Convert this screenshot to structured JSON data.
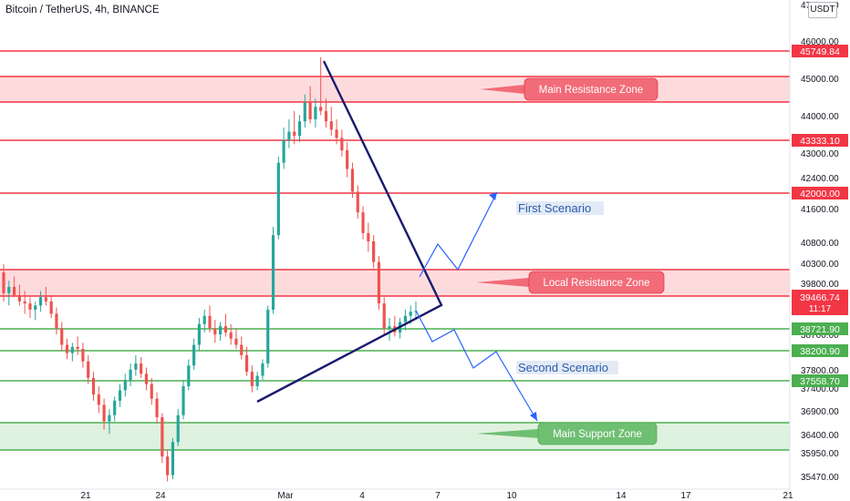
{
  "header": {
    "title": "Bitcoin / TetherUS, 4h, BINANCE",
    "currency": "USDT"
  },
  "chart_data": {
    "type": "candlestick",
    "x_tick_labels": [
      "21",
      "24",
      "Mar",
      "4",
      "7",
      "10",
      "14",
      "17",
      "21"
    ],
    "y_tick_labels": [
      47000,
      46000,
      45000,
      44000,
      43000,
      42400,
      41600,
      40800,
      40300,
      39800,
      38700,
      38200,
      37800,
      37400,
      36900,
      36400,
      35950,
      35470
    ],
    "ylim": [
      35300,
      47100
    ],
    "price_levels": [
      {
        "label": "45749.84",
        "price": 45749.84,
        "color": "#f23645"
      },
      {
        "label": "43333.10",
        "price": 43333.1,
        "color": "#f23645"
      },
      {
        "label": "42000.00",
        "price": 42000.0,
        "color": "#f23645"
      },
      {
        "label": "38721.90",
        "price": 38721.9,
        "color": "#4caf50"
      },
      {
        "label": "38200.90",
        "price": 38200.9,
        "color": "#4caf50"
      },
      {
        "label": "37558.70",
        "price": 37558.7,
        "color": "#4caf50"
      }
    ],
    "current_price": {
      "label": "39466.74",
      "countdown": "11:17",
      "price": 39466.74,
      "color": "#f23645"
    },
    "zones": [
      {
        "name": "Main Resistance Zone",
        "low": 44450,
        "high": 45050,
        "kind": "resistance"
      },
      {
        "name": "Local Resistance Zone",
        "low": 39466.74,
        "high": 40100,
        "kind": "resistance"
      },
      {
        "name": "Main Support Zone",
        "low": 35950,
        "high": 36600,
        "kind": "support"
      }
    ],
    "scenarios": [
      {
        "name": "First Scenario"
      },
      {
        "name": "Second Scenario"
      }
    ],
    "candles_ohlc": [
      [
        40400,
        40600,
        39700,
        39900
      ],
      [
        39900,
        40200,
        39600,
        40050
      ],
      [
        40050,
        40300,
        39800,
        39850
      ],
      [
        39850,
        40100,
        39600,
        39700
      ],
      [
        39700,
        39950,
        39400,
        39650
      ],
      [
        39650,
        39800,
        39300,
        39500
      ],
      [
        39500,
        39700,
        39250,
        39600
      ],
      [
        39600,
        39950,
        39450,
        39800
      ],
      [
        39800,
        40050,
        39600,
        39700
      ],
      [
        39700,
        39850,
        39300,
        39400
      ],
      [
        39400,
        39550,
        38900,
        39050
      ],
      [
        39050,
        39200,
        38500,
        38650
      ],
      [
        38650,
        38800,
        38300,
        38450
      ],
      [
        38450,
        38700,
        38250,
        38600
      ],
      [
        38600,
        38850,
        38400,
        38550
      ],
      [
        38550,
        38700,
        38100,
        38250
      ],
      [
        38250,
        38400,
        37700,
        37850
      ],
      [
        37850,
        38000,
        37300,
        37450
      ],
      [
        37450,
        37650,
        37000,
        37200
      ],
      [
        37200,
        37350,
        36600,
        36800
      ],
      [
        36800,
        37100,
        36500,
        36950
      ],
      [
        36950,
        37400,
        36800,
        37300
      ],
      [
        37300,
        37700,
        37150,
        37550
      ],
      [
        37550,
        37950,
        37400,
        37800
      ],
      [
        37800,
        38200,
        37650,
        38050
      ],
      [
        38050,
        38400,
        37900,
        38200
      ],
      [
        38200,
        38350,
        37850,
        37950
      ],
      [
        37950,
        38100,
        37550,
        37700
      ],
      [
        37700,
        37850,
        37200,
        37350
      ],
      [
        37350,
        37500,
        36750,
        36900
      ],
      [
        36900,
        37000,
        35800,
        35950
      ],
      [
        35950,
        36100,
        35350,
        35500
      ],
      [
        35500,
        36400,
        35400,
        36300
      ],
      [
        36300,
        37100,
        36200,
        36950
      ],
      [
        36950,
        37800,
        36850,
        37650
      ],
      [
        37650,
        38300,
        37550,
        38150
      ],
      [
        38150,
        38800,
        38050,
        38650
      ],
      [
        38650,
        39300,
        38500,
        39150
      ],
      [
        39150,
        39500,
        38950,
        39350
      ],
      [
        39350,
        39600,
        38950,
        39050
      ],
      [
        39050,
        39250,
        38700,
        38900
      ],
      [
        38900,
        39200,
        38750,
        39100
      ],
      [
        39100,
        39400,
        38850,
        38950
      ],
      [
        38950,
        39150,
        38650,
        38800
      ],
      [
        38800,
        39050,
        38550,
        38650
      ],
      [
        38650,
        38850,
        38300,
        38400
      ],
      [
        38400,
        38600,
        37900,
        38000
      ],
      [
        38000,
        38150,
        37500,
        37650
      ],
      [
        37650,
        38000,
        37550,
        37900
      ],
      [
        37900,
        38300,
        37800,
        38200
      ],
      [
        38200,
        39600,
        38100,
        39500
      ],
      [
        39500,
        41500,
        39400,
        41300
      ],
      [
        41300,
        43200,
        41200,
        43050
      ],
      [
        43050,
        43900,
        42900,
        43600
      ],
      [
        43600,
        44100,
        43400,
        43800
      ],
      [
        43800,
        44300,
        43500,
        43700
      ],
      [
        43700,
        44200,
        43550,
        44050
      ],
      [
        44050,
        44700,
        43900,
        44500
      ],
      [
        44500,
        44900,
        44000,
        44100
      ],
      [
        44100,
        44600,
        43900,
        44400
      ],
      [
        44400,
        45600,
        44200,
        44300
      ],
      [
        44300,
        44600,
        43900,
        44050
      ],
      [
        44050,
        44400,
        43700,
        43850
      ],
      [
        43850,
        44100,
        43500,
        43650
      ],
      [
        43650,
        43850,
        43200,
        43350
      ],
      [
        43350,
        43550,
        42700,
        42900
      ],
      [
        42900,
        43050,
        42200,
        42350
      ],
      [
        42350,
        42500,
        41700,
        41850
      ],
      [
        41850,
        42000,
        41200,
        41350
      ],
      [
        41350,
        41600,
        40900,
        41150
      ],
      [
        41150,
        41300,
        40500,
        40650
      ],
      [
        40650,
        40800,
        39500,
        39650
      ],
      [
        39650,
        39800,
        38900,
        39050
      ],
      [
        39050,
        39300,
        38750,
        39100
      ],
      [
        39100,
        39350,
        38850,
        38950
      ],
      [
        38950,
        39300,
        38800,
        39200
      ],
      [
        39200,
        39500,
        39000,
        39350
      ],
      [
        39350,
        39600,
        39150,
        39450
      ],
      [
        39450,
        39700,
        39250,
        39466.74
      ]
    ]
  }
}
